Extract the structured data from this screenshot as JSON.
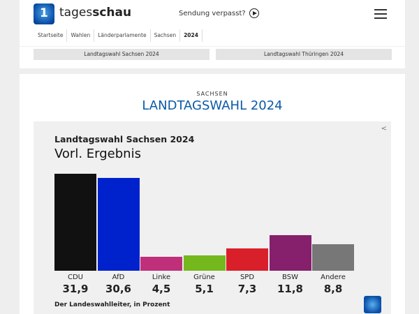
{
  "header": {
    "brand_light": "tages",
    "brand_bold": "schau",
    "missed": "Sendung verpasst?",
    "breadcrumbs": [
      "Startseite",
      "Wahlen",
      "Länderparlamente",
      "Sachsen",
      "2024"
    ],
    "tabs": [
      "Landtagswahl Sachsen 2024",
      "Landtagswahl Thüringen 2024"
    ]
  },
  "main": {
    "kicker": "SACHSEN",
    "title": "LANDTAGSWAHL 2024"
  },
  "chart_data": {
    "type": "bar",
    "title": "Landtagswahl Sachsen 2024",
    "subtitle": "Vorl. Ergebnis",
    "categories": [
      "CDU",
      "AfD",
      "Linke",
      "Grüne",
      "SPD",
      "BSW",
      "Andere"
    ],
    "values": [
      31.9,
      30.6,
      4.5,
      5.1,
      7.3,
      11.8,
      8.8
    ],
    "labels": [
      "31,9",
      "30,6",
      "4,5",
      "5,1",
      "7,3",
      "11,8",
      "8,8"
    ],
    "colors": [
      "#111111",
      "#0022cc",
      "#c0307a",
      "#74b81e",
      "#d9202a",
      "#86206c",
      "#777777"
    ],
    "source": "Der Landeswahlleiter, in Prozent"
  }
}
